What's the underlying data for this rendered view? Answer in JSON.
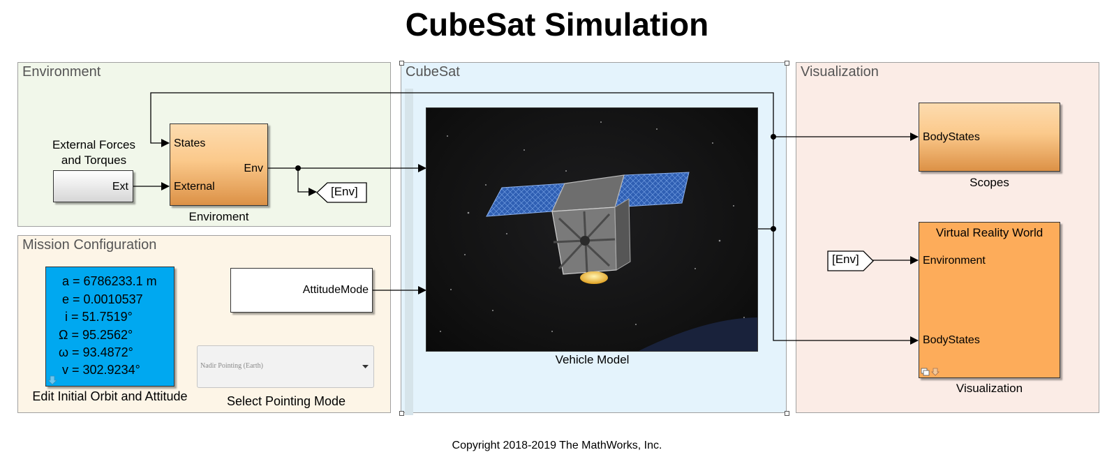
{
  "title": "CubeSat Simulation",
  "areas": {
    "environment": "Environment",
    "mission": "Mission Configuration",
    "cubesat": "CubeSat",
    "visualization": "Visualization"
  },
  "external_block": {
    "label_line1": "External Forces",
    "label_line2": "and Torques",
    "port": "Ext"
  },
  "environment_block": {
    "port_states": "States",
    "port_external": "External",
    "port_env": "Env",
    "caption": "Enviroment"
  },
  "goto_env": "[Env]",
  "orbit": {
    "a": "a = 6786233.1 m",
    "e": "e = 0.0010537",
    "i": "i = 51.7519°",
    "raan": "Ω = 95.2562°",
    "argp": "ω = 93.4872°",
    "nu": "v = 302.9234°",
    "caption": "Edit Initial Orbit and Attitude"
  },
  "attitude_block": {
    "port": "AttitudeMode"
  },
  "pointing": {
    "selected": "Nadir Pointing (Earth)",
    "caption": "Select Pointing Mode"
  },
  "vehicle": {
    "caption": "Vehicle Model"
  },
  "scopes": {
    "port": "BodyStates",
    "caption": "Scopes"
  },
  "vr": {
    "title": "Virtual Reality World",
    "port_env": "Environment",
    "port_body": "BodyStates",
    "caption": "Visualization"
  },
  "from_env": "[Env]",
  "copyright": "Copyright 2018-2019 The MathWorks, Inc.",
  "colors": {
    "orbit_block": "#00a8f0",
    "env_area": "#f1f7ea",
    "mission_area": "#fdf5e7",
    "cubesat_area": "#e4f3fc",
    "vis_area": "#fbece6"
  }
}
